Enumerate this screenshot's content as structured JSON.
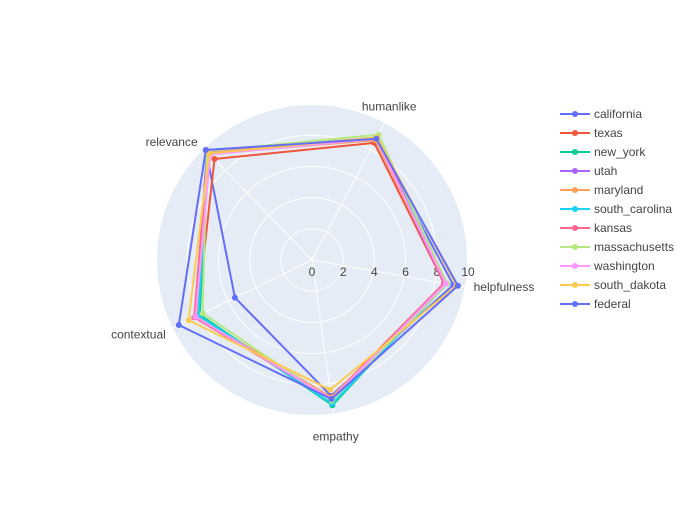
{
  "chart_data": {
    "type": "radar",
    "axes": [
      "helpfulness",
      "humanlike",
      "relevance",
      "contextual",
      "empathy"
    ],
    "radial_ticks": [
      "0",
      "2",
      "4",
      "6",
      "8",
      "10"
    ],
    "radial_range": [
      0,
      10
    ],
    "grid": true,
    "legend_position": "right",
    "series": [
      {
        "name": "california",
        "color": "#636efa",
        "values": [
          9.2,
          8.7,
          9.8,
          5.5,
          8.8
        ]
      },
      {
        "name": "texas",
        "color": "#ef553b",
        "values": [
          8.6,
          8.5,
          9.0,
          8.2,
          8.9
        ]
      },
      {
        "name": "new_york",
        "color": "#00cc96",
        "values": [
          8.7,
          8.8,
          9.6,
          8.0,
          9.4
        ]
      },
      {
        "name": "utah",
        "color": "#ab63fa",
        "values": [
          8.6,
          8.8,
          9.7,
          8.3,
          9.0
        ]
      },
      {
        "name": "maryland",
        "color": "#ffa15a",
        "values": [
          8.7,
          8.7,
          9.5,
          8.2,
          8.9
        ]
      },
      {
        "name": "south_carolina",
        "color": "#19d3f3",
        "values": [
          8.8,
          8.8,
          9.6,
          8.1,
          9.3
        ]
      },
      {
        "name": "kansas",
        "color": "#ff6692",
        "values": [
          8.6,
          8.9,
          9.6,
          8.4,
          9.0
        ]
      },
      {
        "name": "massachusetts",
        "color": "#b6e880",
        "values": [
          8.8,
          9.1,
          9.7,
          7.8,
          9.1
        ]
      },
      {
        "name": "washington",
        "color": "#ff97ff",
        "values": [
          8.7,
          8.8,
          9.4,
          8.3,
          9.0
        ]
      },
      {
        "name": "south_dakota",
        "color": "#fecb52",
        "values": [
          9.4,
          8.9,
          9.5,
          8.8,
          8.4
        ]
      },
      {
        "name": "federal",
        "color": "#636efa",
        "values": [
          9.5,
          8.8,
          9.8,
          9.5,
          9.0
        ]
      }
    ]
  }
}
